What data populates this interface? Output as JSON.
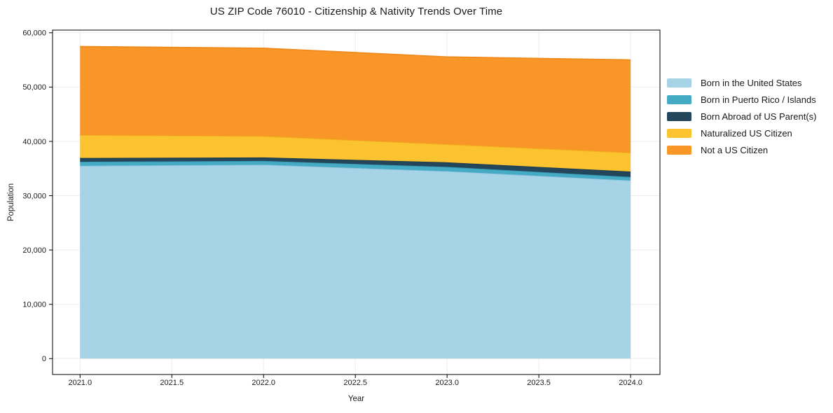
{
  "chart_data": {
    "type": "area",
    "stacked": true,
    "title": "US ZIP Code 76010 - Citizenship & Nativity Trends Over Time",
    "xlabel": "Year",
    "ylabel": "Population",
    "x": [
      2021,
      2022,
      2023,
      2024
    ],
    "series": [
      {
        "name": "Born in the United States",
        "values": [
          35500,
          35700,
          34500,
          32800
        ],
        "fill": "#A7D3E7",
        "line": "#8CC3DC"
      },
      {
        "name": "Born in Puerto Rico / Islands",
        "values": [
          750,
          700,
          800,
          650
        ],
        "fill": "#45AAC4",
        "line": "#3897B2"
      },
      {
        "name": "Born Abroad of US Parent(s)",
        "values": [
          700,
          650,
          850,
          1000
        ],
        "fill": "#23465A",
        "line": "#1C3A4C"
      },
      {
        "name": "Naturalized US Citizen",
        "values": [
          4200,
          3900,
          3300,
          3450
        ],
        "fill": "#FCC331",
        "line": "#F2B41C"
      },
      {
        "name": "Not a US Citizen",
        "values": [
          16300,
          16200,
          16100,
          17100
        ],
        "fill": "#F89628",
        "line": "#EF8A1C"
      }
    ],
    "stacked_totals": [
      57450,
      57150,
      55550,
      55000
    ],
    "x_ticks": [
      2021,
      2021.5,
      2022,
      2022.5,
      2023,
      2023.5,
      2024
    ],
    "x_tick_labels": [
      "2021.0",
      "2021.5",
      "2022.0",
      "2022.5",
      "2023.0",
      "2023.5",
      "2024.0"
    ],
    "y_ticks": [
      0,
      10000,
      20000,
      30000,
      40000,
      50000,
      60000
    ],
    "y_tick_labels": [
      "0",
      "10,000",
      "20,000",
      "30,000",
      "40,000",
      "50,000",
      "60,000"
    ],
    "xlim": [
      2020.85,
      2024.16
    ],
    "ylim": [
      -2925,
      60490
    ],
    "grid": true,
    "legend_position": "right-of-plot",
    "axis_color": "#000000",
    "grid_color": "#ededed",
    "text_color": "#1a1a1a",
    "background_color": "#ffffff"
  }
}
